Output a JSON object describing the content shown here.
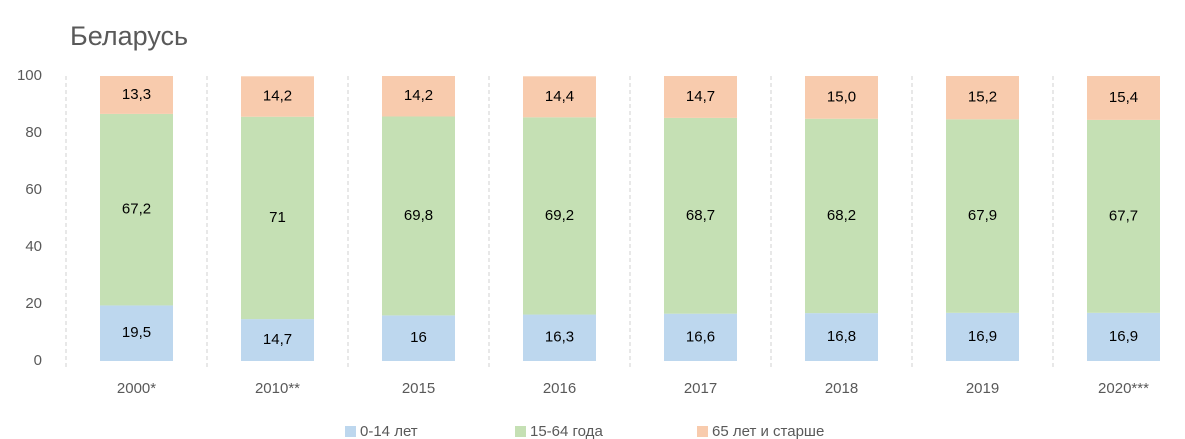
{
  "chart_data": {
    "type": "stacked_bar",
    "title": "Беларусь",
    "categories": [
      "2000*",
      "2010**",
      "2015",
      "2016",
      "2017",
      "2018",
      "2019",
      "2020***"
    ],
    "series": [
      {
        "name": "0-14 лет",
        "color": "#bdd7ee",
        "values": [
          19.5,
          14.7,
          16,
          16.3,
          16.6,
          16.8,
          16.9,
          16.9
        ],
        "value_labels": [
          "19,5",
          "14,7",
          "16",
          "16,3",
          "16,6",
          "16,8",
          "16,9",
          "16,9"
        ]
      },
      {
        "name": "15-64 года",
        "color": "#c5e0b4",
        "values": [
          67.2,
          71,
          69.8,
          69.2,
          68.7,
          68.2,
          67.9,
          67.7
        ],
        "value_labels": [
          "67,2",
          "71",
          "69,8",
          "69,2",
          "68,7",
          "68,2",
          "67,9",
          "67,7"
        ]
      },
      {
        "name": "65 лет и старше",
        "color": "#f8cbad",
        "values": [
          13.3,
          14.2,
          14.2,
          14.4,
          14.7,
          15.0,
          15.2,
          15.4
        ],
        "value_labels": [
          "13,3",
          "14,2",
          "14,2",
          "14,4",
          "14,7",
          "15,0",
          "15,2",
          "15,4"
        ]
      }
    ],
    "ylim": [
      0,
      100
    ],
    "yticks": [
      0,
      20,
      40,
      60,
      80,
      100
    ],
    "legend": "bottom"
  }
}
